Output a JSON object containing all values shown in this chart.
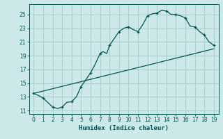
{
  "xlabel": "Humidex (Indice chaleur)",
  "background_color": "#cce8e8",
  "grid_color": "#aacccc",
  "line_color": "#005555",
  "xlim": [
    -0.5,
    19.5
  ],
  "ylim": [
    10.5,
    26.5
  ],
  "xticks": [
    0,
    1,
    2,
    3,
    4,
    5,
    6,
    7,
    8,
    9,
    10,
    11,
    12,
    13,
    14,
    15,
    16,
    17,
    18,
    19
  ],
  "yticks": [
    11,
    13,
    15,
    17,
    19,
    21,
    23,
    25
  ],
  "curve1_x": [
    0,
    0.5,
    1,
    2,
    2.5,
    3,
    3.2,
    3.5,
    4,
    4.5,
    5,
    5.5,
    6,
    6.5,
    7,
    7.3,
    7.7,
    8,
    8.5,
    9,
    9.5,
    10,
    10.5,
    11,
    11.5,
    12,
    12.5,
    13,
    13.5,
    14,
    14.5,
    15,
    15.5,
    16,
    16.5,
    17,
    17.5,
    18,
    18.5,
    19
  ],
  "curve1_y": [
    13.5,
    13.2,
    12.8,
    11.5,
    11.3,
    11.5,
    11.8,
    12.2,
    12.3,
    13.0,
    14.5,
    15.5,
    16.5,
    17.8,
    19.3,
    19.6,
    19.3,
    20.5,
    21.5,
    22.5,
    23.0,
    23.2,
    22.8,
    22.5,
    23.5,
    24.8,
    25.1,
    25.2,
    25.6,
    25.5,
    25.0,
    25.0,
    24.8,
    24.5,
    23.3,
    23.2,
    22.5,
    22.0,
    21.0,
    20.5
  ],
  "curve2_x": [
    0,
    19
  ],
  "curve2_y": [
    13.5,
    20.0
  ],
  "marker_x": [
    0,
    1,
    2,
    3,
    4,
    5,
    6,
    7,
    8,
    9,
    10,
    11,
    12,
    13,
    14,
    15,
    16,
    17,
    18,
    19
  ],
  "marker_y": [
    13.5,
    12.8,
    11.5,
    11.5,
    12.3,
    14.5,
    16.5,
    19.3,
    20.5,
    22.5,
    23.2,
    22.5,
    24.8,
    25.2,
    25.5,
    25.0,
    24.5,
    23.2,
    22.0,
    20.5
  ]
}
